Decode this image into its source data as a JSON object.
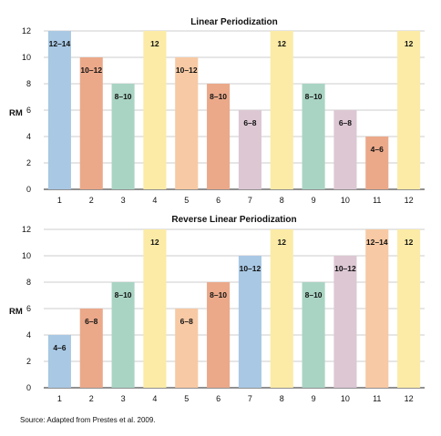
{
  "colors": {
    "blue": "#a8c8e4",
    "salmon": "#eba98a",
    "teal": "#a9d4c4",
    "yellow": "#fbeba6",
    "peach": "#f7c9a4",
    "lilac": "#dcc7d3"
  },
  "chart_data": [
    {
      "type": "bar",
      "title": "Linear Periodization",
      "xlabel": "",
      "ylabel": "RM",
      "ylim": [
        0,
        12
      ],
      "yticks": [
        0,
        2,
        4,
        6,
        8,
        10,
        12
      ],
      "grid": true,
      "categories": [
        "1",
        "2",
        "3",
        "4",
        "5",
        "6",
        "7",
        "8",
        "9",
        "10",
        "11",
        "12"
      ],
      "values": [
        12,
        10,
        8,
        12,
        10,
        8,
        6,
        12,
        8,
        6,
        4,
        12
      ],
      "labels": [
        "12–14",
        "10–12",
        "8–10",
        "12",
        "10–12",
        "8–10",
        "6–8",
        "12",
        "8–10",
        "6–8",
        "4–6",
        "12"
      ],
      "colors": [
        "blue",
        "salmon",
        "teal",
        "yellow",
        "peach",
        "salmon",
        "lilac",
        "yellow",
        "teal",
        "lilac",
        "salmon",
        "yellow"
      ]
    },
    {
      "type": "bar",
      "title": "Reverse Linear Periodization",
      "xlabel": "",
      "ylabel": "RM",
      "ylim": [
        0,
        12
      ],
      "yticks": [
        0,
        2,
        4,
        6,
        8,
        10,
        12
      ],
      "grid": true,
      "categories": [
        "1",
        "2",
        "3",
        "4",
        "5",
        "6",
        "7",
        "8",
        "9",
        "10",
        "11",
        "12"
      ],
      "values": [
        4,
        6,
        8,
        12,
        6,
        8,
        10,
        12,
        8,
        10,
        12,
        12
      ],
      "labels": [
        "4–6",
        "6–8",
        "8–10",
        "12",
        "6–8",
        "8–10",
        "10–12",
        "12",
        "8–10",
        "10–12",
        "12–14",
        "12"
      ],
      "colors": [
        "blue",
        "salmon",
        "teal",
        "yellow",
        "peach",
        "salmon",
        "blue",
        "yellow",
        "teal",
        "lilac",
        "peach",
        "yellow"
      ]
    }
  ],
  "source": "Source: Adapted from Prestes et al. 2009."
}
